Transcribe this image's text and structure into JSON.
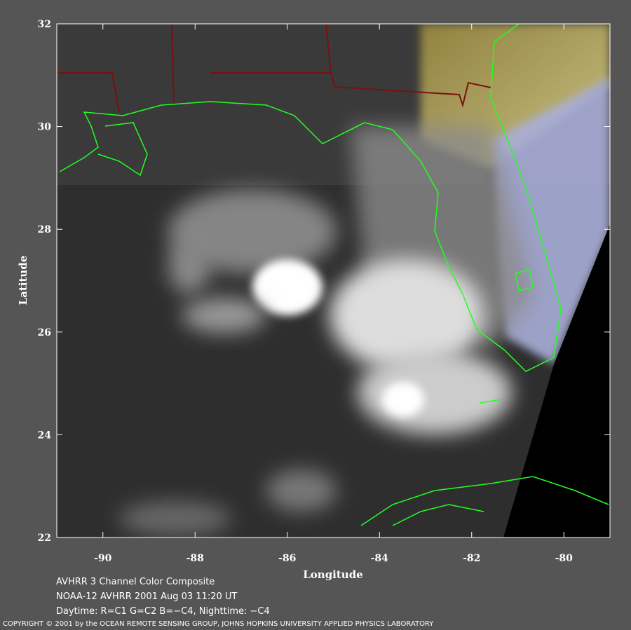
{
  "map": {
    "xlabel": "Longitude",
    "ylabel": "Latitude",
    "xlim": [
      -91,
      -79
    ],
    "ylim": [
      22,
      32
    ],
    "xticks": [
      -90,
      -88,
      -86,
      -84,
      -82,
      -80
    ],
    "yticks": [
      22,
      24,
      26,
      28,
      30,
      32
    ]
  },
  "caption": [
    "AVHRR 3 Channel Color Composite",
    "NOAA-12 AVHRR 2001 Aug 03 11:20 UT",
    "Daytime: R=C1 G=C2 B=−C4, Nighttime: −C4"
  ],
  "copyright": "COPYRIGHT © 2001 by the OCEAN REMOTE SENSING GROUP, JOHNS HOPKINS UNIVERSITY APPLIED PHYSICS LABORATORY"
}
